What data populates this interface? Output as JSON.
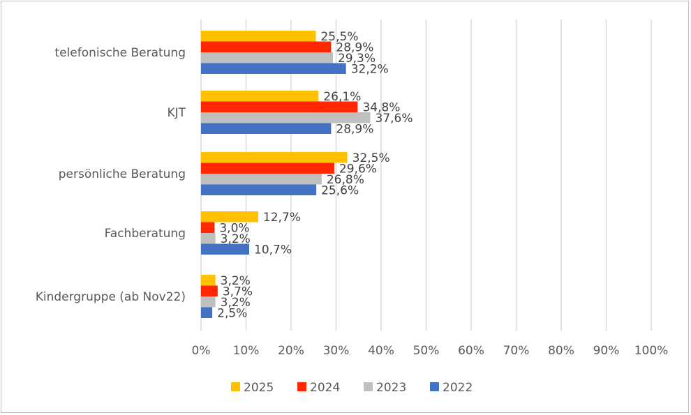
{
  "chart_data": {
    "type": "bar",
    "orientation": "horizontal",
    "categories": [
      "telefonische Beratung",
      "KJT",
      "persönliche Beratung",
      "Fachberatung",
      "Kindergruppe (ab Nov22)"
    ],
    "series": [
      {
        "name": "2025",
        "color": "#FFC000",
        "values": [
          25.5,
          26.1,
          32.5,
          12.7,
          3.2
        ],
        "labels": [
          "25,5%",
          "26,1%",
          "32,5%",
          "12,7%",
          "3,2%"
        ]
      },
      {
        "name": "2024",
        "color": "#FF2600",
        "values": [
          28.9,
          34.8,
          29.6,
          3.0,
          3.7
        ],
        "labels": [
          "28,9%",
          "34,8%",
          "29,6%",
          "3,0%",
          "3,7%"
        ]
      },
      {
        "name": "2023",
        "color": "#BFBFBF",
        "values": [
          29.3,
          37.6,
          26.8,
          3.2,
          3.2
        ],
        "labels": [
          "29,3%",
          "37,6%",
          "26,8%",
          "3,2%",
          "3,2%"
        ]
      },
      {
        "name": "2022",
        "color": "#4472C4",
        "values": [
          32.2,
          28.9,
          25.6,
          10.7,
          2.5
        ],
        "labels": [
          "32,2%",
          "28,9%",
          "25,6%",
          "10,7%",
          "2,5%"
        ]
      }
    ],
    "xlim": [
      0,
      100
    ],
    "xticks": [
      "0%",
      "10%",
      "20%",
      "30%",
      "40%",
      "50%",
      "60%",
      "70%",
      "80%",
      "90%",
      "100%"
    ],
    "grid": true,
    "legend_position": "bottom",
    "legend": [
      "2025",
      "2024",
      "2023",
      "2022"
    ]
  }
}
